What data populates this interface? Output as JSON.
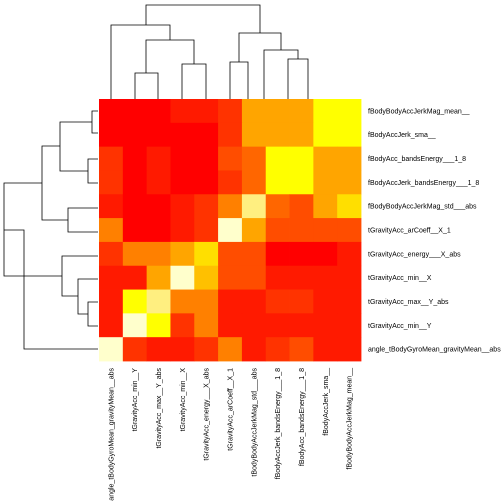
{
  "chart_data": {
    "type": "heatmap",
    "title": "",
    "xlabel": "",
    "ylabel": "",
    "legend": "none",
    "grid": false,
    "row_labels": [
      "fBodyBodyAccJerkMag_mean__",
      "fBodyAccJerk_sma__",
      "fBodyAcc_bandsEnergy___1_8",
      "fBodyAccJerk_bandsEnergy___1_8",
      "fBodyBodyAccJerkMag_std___abs",
      "tGravityAcc_arCoeff__X_1",
      "tGravityAcc_energy___X_abs",
      "tGravityAcc_min__X",
      "tGravityAcc_max__Y_abs",
      "tGravityAcc_min__Y",
      "angle_tBodyGyroMean_gravityMean__abs"
    ],
    "column_labels": [
      "angle_tBodyGyroMean_gravityMean__abs",
      "tGravityAcc_min__Y",
      "tGravityAcc_max__Y_abs",
      "tGravityAcc_min__X",
      "tGravityAcc_energy___X_abs",
      "tGravityAcc_arCoeff__X_1",
      "tBodyBodyAccJerkMag_std___abs",
      "fBodyAccJerk_bandsEnergy___1_8",
      "fBodyAcc_bandsEnergy___1_8",
      "fBodyAccJerk_sma__",
      "fBodyBodyAccJerkMag_mean__"
    ],
    "values": [
      [
        0,
        0,
        0,
        1,
        1,
        2,
        6,
        6,
        6,
        10,
        10
      ],
      [
        0,
        0,
        0,
        0,
        0,
        2,
        6,
        6,
        6,
        10,
        10
      ],
      [
        2,
        0,
        1,
        0,
        0,
        3,
        4,
        10,
        10,
        6,
        6
      ],
      [
        2,
        0,
        1,
        0,
        0,
        2,
        4,
        10,
        10,
        6,
        6
      ],
      [
        1,
        0,
        0,
        1,
        2,
        5,
        9,
        4,
        3,
        6,
        8
      ],
      [
        5,
        0,
        0,
        1,
        2,
        11,
        6,
        3,
        3,
        3,
        3
      ],
      [
        2,
        5,
        5,
        6,
        8,
        3,
        3,
        0,
        0,
        0,
        1
      ],
      [
        1,
        1,
        6,
        11,
        7,
        3,
        3,
        1,
        1,
        1,
        1
      ],
      [
        1,
        10,
        9,
        5,
        5,
        1,
        1,
        2,
        2,
        1,
        1
      ],
      [
        1,
        11,
        10,
        2,
        5,
        1,
        1,
        1,
        1,
        1,
        1
      ],
      [
        11,
        2,
        1,
        1,
        2,
        5,
        1,
        2,
        3,
        1,
        1
      ]
    ],
    "scale": {
      "min": 0,
      "max": 11,
      "colors": [
        "#ff0000",
        "#ff1a00",
        "#ff3300",
        "#ff4d00",
        "#ff6600",
        "#ff8000",
        "#ffa500",
        "#ffc000",
        "#ffdf00",
        "#ffef80",
        "#ffff00",
        "#ffffcc"
      ]
    }
  }
}
